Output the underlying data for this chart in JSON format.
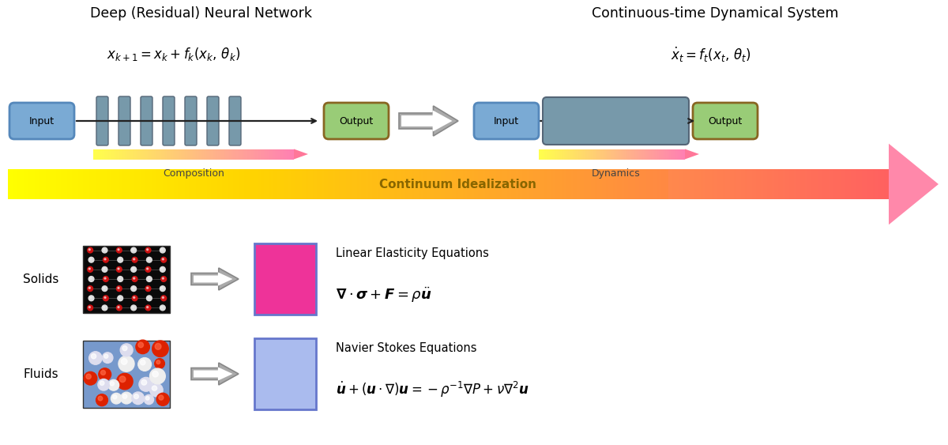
{
  "bg_color": "#ffffff",
  "title_left": "Deep (Residual) Neural Network",
  "title_right": "Continuous-time Dynamical System",
  "input_box_color": "#7aaad4",
  "input_box_edge": "#5588bb",
  "output_box_color": "#99cc77",
  "output_border_color": "#886622",
  "layer_color": "#7799aa",
  "layer_edge": "#556677",
  "dynamics_box_color": "#7799aa",
  "dynamics_box_edge": "#556677",
  "composition_label": "Composition",
  "dynamics_label": "Dynamics",
  "continuum_label": "Continuum Idealization",
  "solids_label": "Solids",
  "fluids_label": "Fluids",
  "elasticity_title": "Linear Elasticity Equations",
  "navier_title": "Navier Stokes Equations",
  "solids_color": "#ee3399",
  "fluids_color": "#aabbee",
  "solids_border": "#6677cc",
  "fluids_border": "#6677cc",
  "arrow_gray": "#aaaaaa",
  "arrow_gray_edge": "#888888",
  "line_color": "#222222",
  "label_color": "#444444",
  "continuum_text_color": "#886600"
}
